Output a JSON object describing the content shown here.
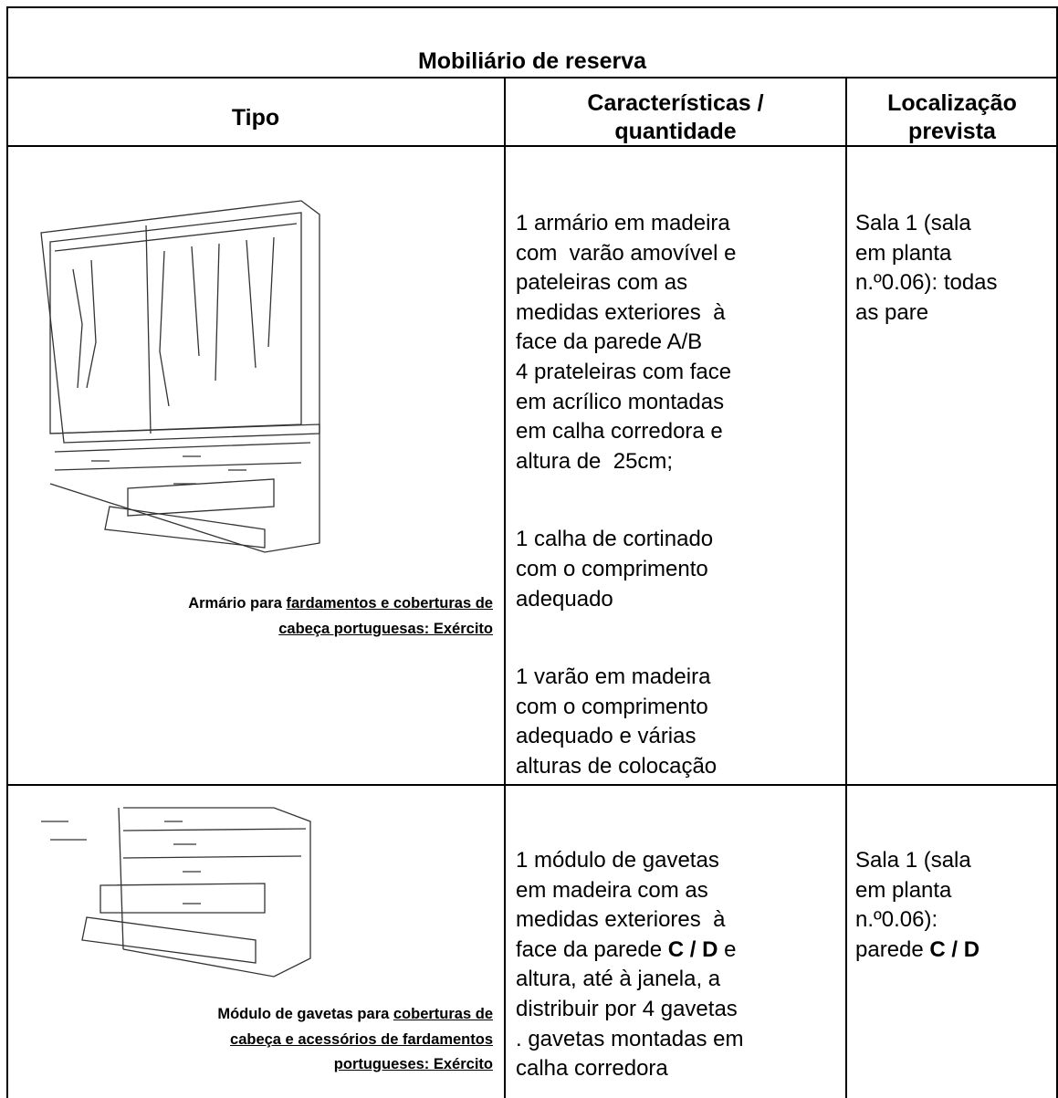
{
  "title": "Mobiliário de reserva",
  "headers": [
    [
      "Tipo"
    ],
    [
      "Características /",
      "quantidade"
    ],
    [
      "Localização",
      "prevista"
    ]
  ],
  "rows": [
    {
      "caption": [
        [
          {
            "text": "Armário para "
          },
          {
            "text": "fardamentos e coberturas de",
            "underline": true
          }
        ],
        [
          {
            "text": "cabeça portuguesas: Exército",
            "underline": true
          }
        ]
      ],
      "characteristics": [
        [
          "1 armário em madeira",
          "com  varão amovível e",
          "pateleiras com as",
          "medidas exteriores  à",
          "face da parede A/B",
          "4 prateleiras com face",
          "em acrílico montadas",
          "em calha corredora e",
          "altura de  25cm;"
        ],
        [
          "1 calha de cortinado",
          "com o comprimento",
          "adequado"
        ],
        [
          "1 varão em madeira",
          "com o comprimento",
          "adequado e várias",
          "alturas de colocação"
        ]
      ],
      "location": [
        "Sala 1 (sala",
        "em planta",
        "n.º0.06): todas",
        "as pare"
      ]
    },
    {
      "caption": [
        [
          {
            "text": "Módulo de gavetas para "
          },
          {
            "text": "coberturas de",
            "underline": true
          }
        ],
        [
          {
            "text": "cabeça e acessórios de fardamentos",
            "underline": true
          }
        ],
        [
          {
            "text": "portugueses: Exército",
            "underline": true
          }
        ]
      ],
      "characteristics": [
        [
          "1 módulo de gavetas",
          "em madeira com as",
          "medidas exteriores  à",
          [
            {
              "text": "face da parede "
            },
            {
              "text": "C / D",
              "bold": true
            },
            {
              "text": " e"
            }
          ],
          "altura, até à janela, a",
          "distribuir por 4 gavetas",
          ". gavetas montadas em",
          "calha corredora"
        ]
      ],
      "location": [
        "Sala 1 (sala",
        "em planta",
        "n.º0.06):",
        [
          {
            "text": "parede "
          },
          {
            "text": "C / D",
            "bold": true
          }
        ]
      ]
    }
  ]
}
